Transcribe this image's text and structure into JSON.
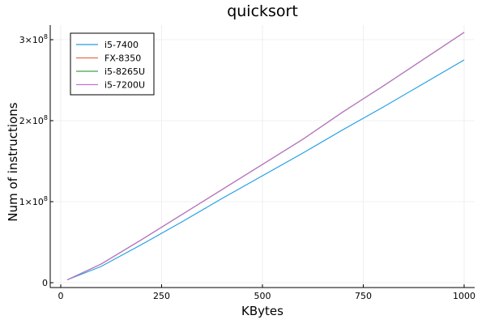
{
  "chart_data": {
    "type": "line",
    "title": "quicksort",
    "xlabel": "KBytes",
    "ylabel": "Num of instructions",
    "xlim": [
      0,
      1000
    ],
    "ylim": [
      0,
      310000000
    ],
    "x_ticks": [
      {
        "value": 0,
        "label": "0"
      },
      {
        "value": 250,
        "label": "250"
      },
      {
        "value": 500,
        "label": "500"
      },
      {
        "value": 750,
        "label": "750"
      },
      {
        "value": 1000,
        "label": "1000"
      }
    ],
    "y_ticks": [
      {
        "value": 0,
        "mantissa": "0",
        "exponent": ""
      },
      {
        "value": 100000000,
        "mantissa": "1×10",
        "exponent": "8"
      },
      {
        "value": 200000000,
        "mantissa": "2×10",
        "exponent": "8"
      },
      {
        "value": 300000000,
        "mantissa": "3×10",
        "exponent": "8"
      }
    ],
    "grid": true,
    "legend_position": "top-left",
    "x": [
      16,
      100,
      200,
      300,
      400,
      500,
      600,
      700,
      800,
      900,
      1000
    ],
    "series": [
      {
        "name": "i5-7400",
        "color": "#1f9de6",
        "values": [
          3500000,
          20000000,
          47000000,
          75000000,
          104000000,
          132000000,
          160000000,
          189000000,
          217000000,
          246000000,
          275000000
        ]
      },
      {
        "name": "FX-8350",
        "color": "#e26f46",
        "values": [
          3500000,
          23000000,
          53000000,
          84000000,
          115000000,
          146000000,
          177000000,
          211000000,
          243000000,
          276000000,
          309000000
        ]
      },
      {
        "name": "i5-8265U",
        "color": "#3da44d",
        "values": [
          3500000,
          23000000,
          53000000,
          84000000,
          115000000,
          146000000,
          177000000,
          211000000,
          243000000,
          276000000,
          309000000
        ]
      },
      {
        "name": "i5-7200U",
        "color": "#c271d2",
        "values": [
          3500000,
          23000000,
          53000000,
          84000000,
          115000000,
          146000000,
          177000000,
          211000000,
          243000000,
          276000000,
          309000000
        ]
      }
    ]
  }
}
